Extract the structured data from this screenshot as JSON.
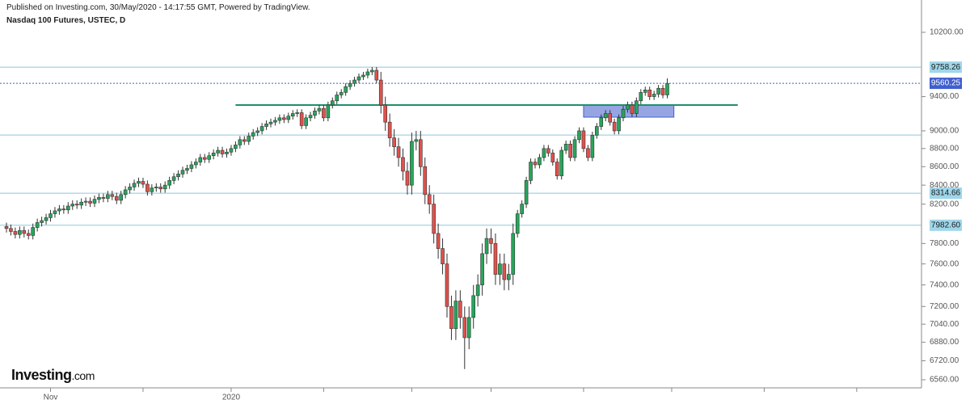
{
  "header": {
    "published": "Published on Investing.com, 30/May/2020 - 14:17:55 GMT, Powered by TradingView.",
    "instrument": "Nasdaq 100 Futures, USTEC, D"
  },
  "logo": {
    "brand": "Investing",
    "suffix": ".com"
  },
  "chart_data": {
    "type": "candlestick",
    "log_scale": true,
    "up_color": "#26a65b",
    "down_color": "#e2504b",
    "ylim": [
      6560,
      10200
    ],
    "yticks": [
      {
        "value": 10200,
        "label": "10200.00"
      },
      {
        "value": 9400,
        "label": "9400.00"
      },
      {
        "value": 9000,
        "label": "9000.00"
      },
      {
        "value": 8800,
        "label": "8800.00"
      },
      {
        "value": 8600,
        "label": "8600.00"
      },
      {
        "value": 8400,
        "label": "8400.00"
      },
      {
        "value": 8200,
        "label": "8200.00"
      },
      {
        "value": 7800,
        "label": "7800.00"
      },
      {
        "value": 7600,
        "label": "7600.00"
      },
      {
        "value": 7400,
        "label": "7400.00"
      },
      {
        "value": 7200,
        "label": "7200.00"
      },
      {
        "value": 7040,
        "label": "7040.00"
      },
      {
        "value": 6880,
        "label": "6880.00"
      },
      {
        "value": 6720,
        "label": "6720.00"
      },
      {
        "value": 6560,
        "label": "6560.00"
      }
    ],
    "xticks": [
      {
        "value": 10,
        "label": "Nov"
      },
      {
        "value": 31,
        "label": null
      },
      {
        "value": 51,
        "label": "2020"
      },
      {
        "value": 72,
        "label": null
      },
      {
        "value": 92,
        "label": null
      },
      {
        "value": 110,
        "label": null
      },
      {
        "value": 131,
        "label": null
      },
      {
        "value": 151,
        "label": null
      },
      {
        "value": 172,
        "label": null
      },
      {
        "value": 193,
        "label": null
      }
    ],
    "levels": [
      {
        "value": 9758.26,
        "color": "#8cc8df",
        "dash": false,
        "show_label": true,
        "label_bg": "#9fd6ea",
        "label_color": "#1a1a1a"
      },
      {
        "value": 9560.25,
        "color": "#3f5fd0",
        "dash": true,
        "show_label": true,
        "label_bg": "#3f5fd0",
        "label_color": "#ffffff"
      },
      {
        "value": 8952,
        "color": "#8cc8df",
        "dash": false,
        "show_label": false
      },
      {
        "value": 8314.66,
        "color": "#8cc8df",
        "dash": false,
        "show_label": true,
        "label_bg": "#9fd6ea",
        "label_color": "#1a1a1a"
      },
      {
        "value": 7982.6,
        "label": "7982.60",
        "color": "#8cc8df",
        "dash": false,
        "show_label": true,
        "label_bg": "#9fd6ea",
        "label_color": "#1a1a1a"
      }
    ],
    "trend_line": {
      "value": 9300,
      "from": 52,
      "to": 166,
      "color": "#1f8f6c"
    },
    "zone": {
      "top": 9300,
      "bottom": 9158,
      "from": 131,
      "to": 151.5,
      "fill": "#7c8fdb",
      "stroke": "#3f5fd0"
    },
    "open": [
      7970,
      7950,
      7920,
      7890,
      7930,
      7900,
      7880,
      7960,
      8010,
      8030,
      8060,
      8100,
      8130,
      8150,
      8140,
      8180,
      8200,
      8190,
      8220,
      8230,
      8210,
      8250,
      8270,
      8260,
      8300,
      8280,
      8240,
      8300,
      8350,
      8380,
      8420,
      8440,
      8410,
      8330,
      8370,
      8380,
      8360,
      8400,
      8450,
      8490,
      8520,
      8560,
      8580,
      8620,
      8650,
      8700,
      8680,
      8720,
      8750,
      8780,
      8740,
      8760,
      8800,
      8840,
      8900,
      8880,
      8940,
      8980,
      9000,
      9050,
      9080,
      9100,
      9120,
      9150,
      9130,
      9170,
      9200,
      9210,
      9060,
      9150,
      9180,
      9230,
      9260,
      9150,
      9300,
      9350,
      9420,
      9450,
      9520,
      9560,
      9600,
      9640,
      9660,
      9700,
      9720,
      9600,
      9300,
      9100,
      8920,
      8820,
      8700,
      8550,
      8400,
      8880,
      8900,
      8600,
      8300,
      8200,
      7900,
      7750,
      7600,
      7200,
      7000,
      7250,
      7100,
      6920,
      7100,
      7300,
      7400,
      7700,
      7850,
      7800,
      7500,
      7600,
      7450,
      7500,
      7900,
      8100,
      8200,
      8450,
      8650,
      8620,
      8700,
      8800,
      8750,
      8650,
      8500,
      8780,
      8850,
      8700,
      8900,
      9000,
      8800,
      8700,
      8950,
      9050,
      9150,
      9200,
      9100,
      9000,
      9150,
      9250,
      9300,
      9200,
      9350,
      9450,
      9480,
      9400,
      9430,
      9500,
      9420
    ],
    "high": [
      8010,
      7990,
      7960,
      7970,
      7970,
      7940,
      8000,
      8050,
      8070,
      8100,
      8140,
      8170,
      8190,
      8190,
      8220,
      8240,
      8240,
      8260,
      8270,
      8270,
      8290,
      8310,
      8310,
      8340,
      8340,
      8320,
      8340,
      8390,
      8420,
      8460,
      8480,
      8480,
      8450,
      8410,
      8420,
      8420,
      8440,
      8490,
      8530,
      8560,
      8600,
      8620,
      8660,
      8690,
      8740,
      8740,
      8760,
      8790,
      8820,
      8820,
      8800,
      8840,
      8880,
      8940,
      8940,
      8980,
      9020,
      9040,
      9090,
      9120,
      9140,
      9160,
      9190,
      9190,
      9210,
      9240,
      9250,
      9250,
      9190,
      9220,
      9270,
      9300,
      9300,
      9340,
      9390,
      9460,
      9490,
      9560,
      9600,
      9640,
      9680,
      9700,
      9740,
      9760,
      9760,
      9700,
      9400,
      9200,
      9020,
      8920,
      8800,
      8650,
      8980,
      9000,
      9000,
      8700,
      8400,
      8300,
      8000,
      7850,
      7700,
      7300,
      7350,
      7350,
      7200,
      7200,
      7400,
      7500,
      7800,
      7950,
      7950,
      7900,
      7700,
      7700,
      7600,
      8000,
      8140,
      8240,
      8490,
      8690,
      8690,
      8740,
      8840,
      8840,
      8790,
      8690,
      8820,
      8890,
      8890,
      8940,
      9040,
      9040,
      8840,
      8990,
      9090,
      9190,
      9240,
      9240,
      9140,
      9190,
      9290,
      9340,
      9340,
      9390,
      9490,
      9520,
      9520,
      9470,
      9540,
      9540,
      9620
    ],
    "low": [
      7910,
      7880,
      7850,
      7850,
      7860,
      7840,
      7840,
      7920,
      7970,
      7990,
      8020,
      8060,
      8090,
      8100,
      8100,
      8140,
      8150,
      8150,
      8180,
      8170,
      8170,
      8210,
      8220,
      8220,
      8240,
      8200,
      8200,
      8260,
      8310,
      8340,
      8380,
      8370,
      8290,
      8290,
      8330,
      8320,
      8320,
      8360,
      8410,
      8450,
      8480,
      8520,
      8540,
      8580,
      8610,
      8640,
      8640,
      8680,
      8710,
      8700,
      8700,
      8720,
      8760,
      8800,
      8840,
      8840,
      8900,
      8940,
      8960,
      9010,
      9040,
      9060,
      9080,
      9090,
      9090,
      9130,
      9160,
      9020,
      9020,
      9110,
      9140,
      9190,
      9110,
      9110,
      9260,
      9310,
      9380,
      9410,
      9480,
      9520,
      9560,
      9600,
      9620,
      9660,
      9560,
      9200,
      9000,
      8820,
      8720,
      8600,
      8450,
      8300,
      8300,
      8780,
      8500,
      8200,
      8100,
      7800,
      7650,
      7500,
      7100,
      6900,
      6900,
      7000,
      6650,
      6820,
      7000,
      7200,
      7300,
      7600,
      7700,
      7400,
      7400,
      7350,
      7350,
      7400,
      7860,
      8060,
      8160,
      8410,
      8580,
      8580,
      8660,
      8710,
      8610,
      8460,
      8460,
      8740,
      8660,
      8660,
      8860,
      8760,
      8660,
      8660,
      8910,
      9010,
      9110,
      9060,
      8960,
      8960,
      9110,
      9210,
      9160,
      9160,
      9310,
      9410,
      9360,
      9360,
      9390,
      9380,
      9380
    ],
    "close": [
      7950,
      7920,
      7890,
      7930,
      7900,
      7880,
      7960,
      8010,
      8030,
      8060,
      8100,
      8130,
      8150,
      8140,
      8180,
      8200,
      8190,
      8220,
      8230,
      8210,
      8250,
      8270,
      8260,
      8300,
      8280,
      8240,
      8300,
      8350,
      8380,
      8420,
      8440,
      8410,
      8330,
      8370,
      8380,
      8360,
      8400,
      8450,
      8490,
      8520,
      8560,
      8580,
      8620,
      8650,
      8700,
      8680,
      8720,
      8750,
      8780,
      8740,
      8760,
      8800,
      8840,
      8900,
      8880,
      8940,
      8980,
      9000,
      9050,
      9080,
      9100,
      9120,
      9150,
      9130,
      9170,
      9200,
      9210,
      9060,
      9150,
      9180,
      9230,
      9260,
      9150,
      9300,
      9350,
      9420,
      9450,
      9520,
      9560,
      9600,
      9640,
      9660,
      9700,
      9720,
      9600,
      9300,
      9100,
      8920,
      8820,
      8700,
      8550,
      8400,
      8880,
      8900,
      8600,
      8300,
      8200,
      7900,
      7750,
      7600,
      7200,
      7000,
      7250,
      7100,
      6920,
      7100,
      7300,
      7400,
      7700,
      7850,
      7800,
      7500,
      7600,
      7450,
      7500,
      7900,
      8100,
      8200,
      8450,
      8650,
      8620,
      8700,
      8800,
      8750,
      8650,
      8500,
      8780,
      8850,
      8700,
      8900,
      9000,
      8800,
      8700,
      8950,
      9050,
      9150,
      9200,
      9100,
      9000,
      9150,
      9250,
      9300,
      9200,
      9350,
      9450,
      9480,
      9400,
      9430,
      9500,
      9420,
      9560
    ]
  }
}
